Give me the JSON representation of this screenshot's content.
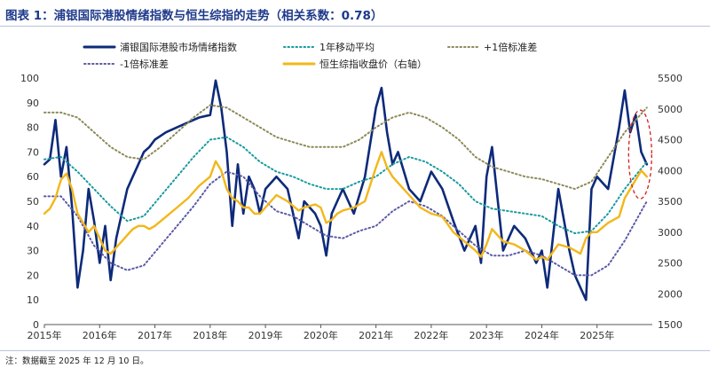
{
  "header": {
    "title": "图表 1：浦银国际港股情绪指数与恒生综指的走势（相关系数：0.78）"
  },
  "footer": {
    "note": "注：数据截至 2025 年 12 月 10 日。"
  },
  "colors": {
    "sentiment": "#0d2a7a",
    "ma": "#1a9aa0",
    "upper": "#8c8a5a",
    "lower": "#5a5aa8",
    "hsci": "#f2b71a",
    "highlight": "#d21f1f"
  },
  "chart_data": {
    "type": "line",
    "title": "",
    "x_tick_labels": [
      "2015年",
      "2016年",
      "2017年",
      "2018年",
      "2019年",
      "2020年",
      "2021年",
      "2022年",
      "2023年",
      "2024年",
      "2025年"
    ],
    "x_range": [
      2015.0,
      2026.0
    ],
    "y_left": {
      "range": [
        0,
        100
      ],
      "ticks": [
        "0",
        "10",
        "20",
        "30",
        "40",
        "50",
        "60",
        "70",
        "80",
        "90",
        "100"
      ]
    },
    "y_right": {
      "range": [
        1500,
        5500
      ],
      "ticks": [
        "1500",
        "2000",
        "2500",
        "3000",
        "3500",
        "4000",
        "4500",
        "5000",
        "5500"
      ]
    },
    "legend": [
      {
        "key": "sentiment",
        "label": "浦银国际港股市场情绪指数",
        "style": "solid"
      },
      {
        "key": "ma",
        "label": "1年移动平均",
        "style": "dotted"
      },
      {
        "key": "upper",
        "label": "+1倍标准差",
        "style": "dotted"
      },
      {
        "key": "lower",
        "label": "-1倍标准差",
        "style": "dotted"
      },
      {
        "key": "hsci",
        "label": "恒生综指收盘价（右轴）",
        "style": "solid"
      }
    ],
    "series": [
      {
        "name": "浦银国际港股市场情绪指数",
        "key": "sentiment",
        "axis": "left",
        "x": [
          2015.0,
          2015.1,
          2015.2,
          2015.3,
          2015.4,
          2015.5,
          2015.6,
          2015.7,
          2015.8,
          2015.9,
          2016.0,
          2016.1,
          2016.2,
          2016.3,
          2016.4,
          2016.5,
          2016.6,
          2016.7,
          2016.8,
          2016.9,
          2017.0,
          2017.2,
          2017.4,
          2017.6,
          2017.8,
          2018.0,
          2018.1,
          2018.2,
          2018.3,
          2018.4,
          2018.5,
          2018.6,
          2018.7,
          2018.8,
          2018.9,
          2019.0,
          2019.2,
          2019.4,
          2019.6,
          2019.7,
          2019.9,
          2020.0,
          2020.1,
          2020.2,
          2020.3,
          2020.4,
          2020.6,
          2020.8,
          2021.0,
          2021.1,
          2021.2,
          2021.3,
          2021.4,
          2021.6,
          2021.8,
          2022.0,
          2022.2,
          2022.4,
          2022.6,
          2022.8,
          2022.9,
          2023.0,
          2023.1,
          2023.3,
          2023.5,
          2023.7,
          2023.9,
          2024.0,
          2024.1,
          2024.3,
          2024.5,
          2024.6,
          2024.7,
          2024.8,
          2024.9,
          2025.0,
          2025.2,
          2025.4,
          2025.5,
          2025.6,
          2025.7,
          2025.8,
          2025.9
        ],
        "y": [
          65,
          67,
          83,
          60,
          72,
          48,
          15,
          30,
          55,
          42,
          25,
          40,
          18,
          35,
          45,
          55,
          60,
          65,
          70,
          72,
          75,
          78,
          80,
          82,
          84,
          85,
          99,
          88,
          70,
          40,
          65,
          45,
          60,
          55,
          45,
          55,
          60,
          55,
          35,
          50,
          45,
          40,
          28,
          45,
          50,
          55,
          45,
          60,
          88,
          96,
          78,
          65,
          70,
          55,
          50,
          62,
          55,
          42,
          30,
          40,
          25,
          60,
          72,
          30,
          40,
          35,
          25,
          30,
          15,
          55,
          30,
          20,
          15,
          10,
          55,
          60,
          55,
          80,
          95,
          78,
          85,
          70,
          65
        ]
      },
      {
        "name": "1年移动平均",
        "key": "ma",
        "axis": "left",
        "x": [
          2015.0,
          2015.3,
          2015.6,
          2015.9,
          2016.2,
          2016.5,
          2016.8,
          2017.1,
          2017.4,
          2017.7,
          2018.0,
          2018.3,
          2018.6,
          2018.9,
          2019.2,
          2019.5,
          2019.8,
          2020.1,
          2020.4,
          2020.7,
          2021.0,
          2021.3,
          2021.6,
          2021.9,
          2022.2,
          2022.5,
          2022.8,
          2023.1,
          2023.4,
          2023.7,
          2024.0,
          2024.3,
          2024.6,
          2024.9,
          2025.2,
          2025.5,
          2025.9
        ],
        "y": [
          67,
          68,
          62,
          55,
          48,
          42,
          44,
          52,
          60,
          68,
          75,
          76,
          72,
          66,
          62,
          60,
          57,
          55,
          55,
          58,
          60,
          65,
          68,
          66,
          62,
          57,
          50,
          47,
          46,
          45,
          44,
          40,
          37,
          38,
          45,
          55,
          66
        ]
      },
      {
        "name": "+1倍标准差",
        "key": "upper",
        "axis": "left",
        "x": [
          2015.0,
          2015.3,
          2015.6,
          2015.9,
          2016.2,
          2016.5,
          2016.8,
          2017.1,
          2017.4,
          2017.7,
          2018.0,
          2018.3,
          2018.6,
          2018.9,
          2019.2,
          2019.5,
          2019.8,
          2020.1,
          2020.4,
          2020.7,
          2021.0,
          2021.3,
          2021.6,
          2021.9,
          2022.2,
          2022.5,
          2022.8,
          2023.1,
          2023.4,
          2023.7,
          2024.0,
          2024.3,
          2024.6,
          2024.9,
          2025.2,
          2025.5,
          2025.9
        ],
        "y": [
          86,
          86,
          84,
          78,
          72,
          68,
          67,
          72,
          78,
          84,
          89,
          88,
          84,
          80,
          76,
          74,
          72,
          72,
          72,
          75,
          80,
          84,
          86,
          84,
          80,
          75,
          68,
          64,
          62,
          60,
          59,
          57,
          55,
          58,
          68,
          78,
          88
        ]
      },
      {
        "name": "-1倍标准差",
        "key": "lower",
        "axis": "left",
        "x": [
          2015.0,
          2015.3,
          2015.6,
          2015.9,
          2016.2,
          2016.5,
          2016.8,
          2017.1,
          2017.4,
          2017.7,
          2018.0,
          2018.3,
          2018.6,
          2018.9,
          2019.2,
          2019.5,
          2019.8,
          2020.1,
          2020.4,
          2020.7,
          2021.0,
          2021.3,
          2021.6,
          2021.9,
          2022.2,
          2022.5,
          2022.8,
          2023.1,
          2023.4,
          2023.7,
          2024.0,
          2024.3,
          2024.6,
          2024.9,
          2025.2,
          2025.5,
          2025.9
        ],
        "y": [
          52,
          52,
          44,
          32,
          25,
          22,
          24,
          32,
          40,
          48,
          57,
          62,
          60,
          52,
          46,
          44,
          40,
          36,
          35,
          38,
          40,
          46,
          50,
          48,
          44,
          38,
          32,
          28,
          28,
          30,
          28,
          24,
          20,
          20,
          24,
          34,
          50
        ]
      },
      {
        "name": "恒生综指收盘价（右轴）",
        "key": "hsci",
        "axis": "right",
        "x": [
          2015.0,
          2015.1,
          2015.2,
          2015.3,
          2015.4,
          2015.5,
          2015.6,
          2015.7,
          2015.8,
          2015.9,
          2016.0,
          2016.1,
          2016.2,
          2016.3,
          2016.4,
          2016.5,
          2016.6,
          2016.7,
          2016.8,
          2016.9,
          2017.0,
          2017.2,
          2017.4,
          2017.6,
          2017.8,
          2018.0,
          2018.1,
          2018.2,
          2018.3,
          2018.4,
          2018.5,
          2018.6,
          2018.7,
          2018.8,
          2018.9,
          2019.0,
          2019.2,
          2019.4,
          2019.6,
          2019.7,
          2019.9,
          2020.0,
          2020.1,
          2020.2,
          2020.3,
          2020.4,
          2020.6,
          2020.8,
          2021.0,
          2021.1,
          2021.2,
          2021.3,
          2021.4,
          2021.6,
          2021.8,
          2022.0,
          2022.2,
          2022.4,
          2022.6,
          2022.8,
          2022.9,
          2023.0,
          2023.1,
          2023.3,
          2023.5,
          2023.7,
          2023.9,
          2024.0,
          2024.1,
          2024.3,
          2024.5,
          2024.6,
          2024.7,
          2024.8,
          2024.9,
          2025.0,
          2025.2,
          2025.4,
          2025.5,
          2025.6,
          2025.7,
          2025.8,
          2025.9
        ],
        "y": [
          3300,
          3380,
          3550,
          3850,
          3950,
          3700,
          3300,
          3150,
          3000,
          3100,
          2900,
          2700,
          2650,
          2750,
          2850,
          2950,
          3050,
          3100,
          3100,
          3050,
          3100,
          3250,
          3400,
          3550,
          3750,
          3900,
          4150,
          4000,
          3700,
          3550,
          3500,
          3400,
          3400,
          3300,
          3300,
          3400,
          3600,
          3500,
          3350,
          3400,
          3450,
          3400,
          3150,
          3200,
          3300,
          3350,
          3400,
          3500,
          4050,
          4300,
          4050,
          3900,
          3800,
          3600,
          3400,
          3300,
          3250,
          3000,
          2850,
          2700,
          2600,
          2800,
          3050,
          2850,
          2800,
          2700,
          2550,
          2600,
          2550,
          2800,
          2750,
          2700,
          2650,
          2900,
          3000,
          3000,
          3150,
          3250,
          3550,
          3700,
          3850,
          4000,
          3900
        ]
      }
    ]
  }
}
